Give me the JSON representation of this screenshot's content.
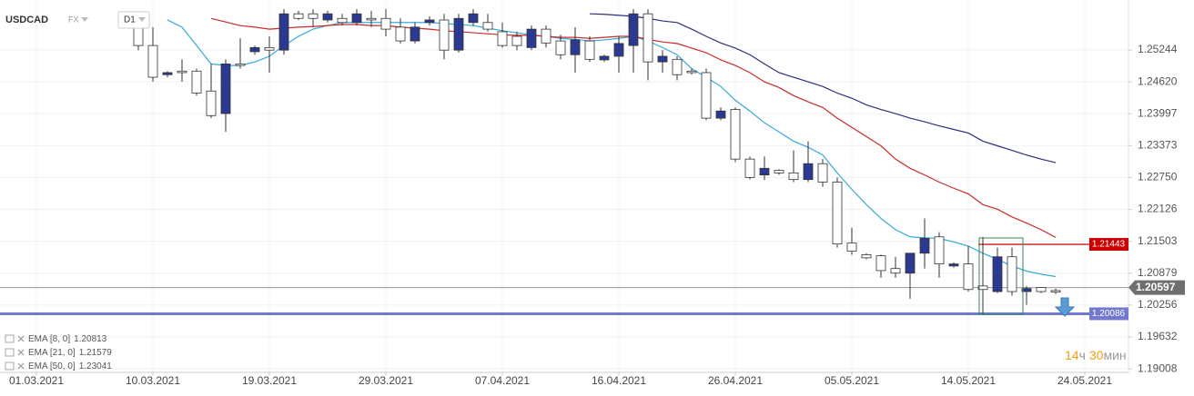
{
  "chart_data": {
    "type": "candlestick",
    "symbol": "USDCAD",
    "market": "FX",
    "timeframe": "D1",
    "categories": [
      "01.03.2021",
      null,
      null,
      null,
      null,
      null,
      null,
      null,
      "10.03.2021",
      null,
      null,
      null,
      null,
      null,
      null,
      null,
      "19.03.2021",
      null,
      null,
      null,
      null,
      null,
      null,
      null,
      "29.03.2021",
      null,
      null,
      null,
      null,
      null,
      null,
      null,
      "07.04.2021",
      null,
      null,
      null,
      null,
      null,
      null,
      null,
      "16.04.2021",
      null,
      null,
      null,
      null,
      null,
      null,
      null,
      "26.04.2021",
      null,
      null,
      null,
      null,
      null,
      null,
      null,
      "05.05.2021",
      null,
      null,
      null,
      null,
      null,
      null,
      null,
      "14.05.2021",
      null,
      null,
      null,
      null,
      null,
      null,
      null,
      "24.05.2021"
    ],
    "ohlc": {
      "open": [
        null,
        null,
        null,
        null,
        null,
        null,
        null,
        1.2569,
        1.2533,
        1.2476,
        1.2483,
        1.2483,
        1.2444,
        1.24,
        1.2497,
        1.2521,
        1.2529,
        1.2524,
        1.2595,
        1.2595,
        1.2583,
        1.2586,
        1.2578,
        1.2586,
        1.2586,
        1.2569,
        1.2542,
        1.2578,
        1.2583,
        1.2524,
        1.2578,
        1.2578,
        1.256,
        1.2551,
        1.2529,
        1.2565,
        1.2542,
        1.2515,
        1.2542,
        1.2505,
        1.2512,
        1.2533,
        1.2595,
        1.2501,
        1.2506,
        1.2483,
        1.248,
        1.2391,
        1.2408,
        1.2311,
        1.228,
        1.2289,
        1.2284,
        1.2271,
        1.2302,
        1.2266,
        1.2147,
        1.2124,
        1.2122,
        1.2097,
        1.2088,
        1.2127,
        1.2159,
        1.2102,
        1.2106,
        1.2063,
        1.2052,
        1.212,
        1.2052,
        1.206,
        1.2054,
        null,
        null
      ],
      "high": [
        null,
        null,
        null,
        null,
        null,
        null,
        null,
        1.2595,
        1.2569,
        1.2483,
        1.2506,
        1.2488,
        1.2497,
        1.2506,
        1.2547,
        1.2533,
        1.2551,
        1.2604,
        1.2601,
        1.2604,
        1.2601,
        1.2595,
        1.2604,
        1.2601,
        1.2604,
        1.2586,
        1.2578,
        1.259,
        1.2595,
        1.2595,
        1.2604,
        1.2595,
        1.2578,
        1.256,
        1.2572,
        1.2572,
        1.2554,
        1.2569,
        1.2551,
        1.2515,
        1.2551,
        1.2604,
        1.2604,
        1.2524,
        1.2512,
        1.2488,
        1.2488,
        1.2412,
        1.2412,
        1.2316,
        1.2316,
        1.2291,
        1.2328,
        1.2346,
        1.2311,
        1.2275,
        1.2177,
        1.2127,
        1.2124,
        1.212,
        1.2127,
        1.2195,
        1.2168,
        1.2109,
        1.2141,
        1.2159,
        1.2138,
        1.2138,
        1.2063,
        1.2061,
        1.2058,
        null,
        null
      ],
      "low": [
        null,
        null,
        null,
        null,
        null,
        null,
        null,
        1.2524,
        1.2462,
        1.2471,
        1.2462,
        1.2435,
        1.2391,
        1.2364,
        1.2488,
        1.2515,
        1.248,
        1.2515,
        1.2583,
        1.2569,
        1.2578,
        1.2572,
        1.2572,
        1.2569,
        1.2551,
        1.2537,
        1.2537,
        1.2572,
        1.2506,
        1.2519,
        1.2572,
        1.256,
        1.2529,
        1.2524,
        1.2524,
        1.2529,
        1.2506,
        1.248,
        1.2501,
        1.2501,
        1.248,
        1.248,
        1.2465,
        1.248,
        1.2465,
        1.2476,
        1.2387,
        1.2387,
        1.2305,
        1.2271,
        1.227,
        1.228,
        1.2266,
        1.2266,
        1.2257,
        1.2138,
        1.2124,
        1.2115,
        1.2079,
        1.2079,
        1.2038,
        1.2097,
        1.2079,
        1.2099,
        1.2052,
        1.2008,
        1.2049,
        1.2044,
        1.2026,
        1.2049,
        1.2047,
        null,
        null
      ],
      "close": [
        null,
        null,
        null,
        null,
        null,
        null,
        null,
        1.2533,
        1.2471,
        1.248,
        1.248,
        1.244,
        1.2396,
        1.2497,
        1.2494,
        1.2529,
        1.2524,
        1.2595,
        1.2586,
        1.2586,
        1.2595,
        1.2578,
        1.2595,
        1.2583,
        1.2565,
        1.2542,
        1.2569,
        1.2583,
        1.2524,
        1.2586,
        1.2595,
        1.2565,
        1.2533,
        1.2533,
        1.2565,
        1.2538,
        1.2515,
        1.2544,
        1.2506,
        1.2512,
        1.2537,
        1.2595,
        1.2501,
        1.2512,
        1.2476,
        1.248,
        1.2391,
        1.2405,
        1.2311,
        1.2275,
        1.2293,
        1.2284,
        1.2271,
        1.2302,
        1.2266,
        1.2145,
        1.2131,
        1.2118,
        1.2093,
        1.2088,
        1.2127,
        1.2156,
        1.2106,
        1.2106,
        1.2056,
        1.2056,
        1.212,
        1.2052,
        1.2058,
        1.2052,
        1.2051,
        null,
        null
      ]
    },
    "up_color": "#2b3990",
    "down_color": "#ffffff",
    "series": [
      {
        "name": "EMA [8, 0]",
        "color": "#35a9dc",
        "values": [
          null,
          null,
          null,
          null,
          null,
          null,
          null,
          null,
          null,
          1.2583,
          1.2569,
          1.2533,
          1.2497,
          1.2494,
          1.2494,
          1.2501,
          1.2512,
          1.2533,
          1.2551,
          1.2565,
          1.2572,
          1.2578,
          1.2578,
          1.2578,
          1.2578,
          1.2578,
          1.2578,
          1.2578,
          1.2576,
          1.2574,
          1.2572,
          1.2567,
          1.2562,
          1.2558,
          1.2554,
          1.2551,
          1.2547,
          1.2545,
          1.2542,
          1.2544,
          1.2547,
          1.2551,
          1.2542,
          1.2529,
          1.2515,
          1.2488,
          1.2471,
          1.2453,
          1.2426,
          1.2405,
          1.2382,
          1.2364,
          1.2346,
          1.2334,
          1.2319,
          1.2284,
          1.2252,
          1.2222,
          1.2195,
          1.2173,
          1.2159,
          1.2157,
          1.2156,
          1.2149,
          1.2141,
          1.2127,
          1.2115,
          1.2102,
          1.2092,
          1.2086,
          1.20813,
          null,
          null
        ]
      },
      {
        "name": "EMA [21, 0]",
        "color": "#cc2a2a",
        "values": [
          null,
          null,
          null,
          null,
          null,
          null,
          null,
          null,
          null,
          null,
          null,
          null,
          1.2586,
          1.2579,
          1.2572,
          1.2569,
          1.2565,
          1.2567,
          1.2569,
          1.257,
          1.2572,
          1.2574,
          1.2574,
          1.2572,
          1.2572,
          1.2569,
          1.2567,
          1.2565,
          1.2562,
          1.256,
          1.2558,
          1.2556,
          1.2554,
          1.2553,
          1.2553,
          1.2551,
          1.2549,
          1.2549,
          1.2547,
          1.2549,
          1.2551,
          1.2551,
          1.2545,
          1.254,
          1.2537,
          1.2528,
          1.2519,
          1.2505,
          1.2494,
          1.248,
          1.2462,
          1.2451,
          1.2435,
          1.2423,
          1.2412,
          1.2391,
          1.2373,
          1.2355,
          1.2337,
          1.2311,
          1.2293,
          1.228,
          1.2266,
          1.2254,
          1.2243,
          1.2222,
          1.2213,
          1.2198,
          1.2186,
          1.2173,
          1.21579,
          null,
          null
        ]
      },
      {
        "name": "EMA [50, 0]",
        "color": "#2d2f7e",
        "values": [
          null,
          null,
          null,
          null,
          null,
          null,
          null,
          null,
          null,
          null,
          null,
          null,
          null,
          null,
          null,
          null,
          null,
          null,
          null,
          null,
          null,
          null,
          null,
          null,
          null,
          null,
          null,
          null,
          null,
          null,
          null,
          null,
          null,
          null,
          null,
          null,
          null,
          null,
          1.2595,
          1.2594,
          1.2592,
          1.259,
          1.2586,
          1.2581,
          1.2578,
          1.2565,
          1.2551,
          1.2538,
          1.2528,
          1.2515,
          1.2497,
          1.248,
          1.2471,
          1.2462,
          1.2453,
          1.244,
          1.243,
          1.2417,
          1.2408,
          1.24,
          1.2391,
          1.2384,
          1.2376,
          1.2369,
          1.2362,
          1.2346,
          1.2337,
          1.2328,
          1.2319,
          1.2311,
          1.23041,
          null,
          null
        ]
      }
    ],
    "levels": [
      {
        "value": 1.21443,
        "color": "#cc0000"
      },
      {
        "value": 1.20086,
        "color": "#7279cf"
      }
    ],
    "current_price": 1.20597,
    "ylim": [
      1.1894,
      1.2622
    ],
    "yticks": [
      1.25244,
      {
        "value": 1.2462,
        "label": "1.24620"
      },
      1.23997,
      1.23373,
      {
        "value": 1.2275,
        "label": "1.22750"
      },
      1.22126,
      1.21503,
      1.20879,
      1.20256,
      1.19632,
      1.19008
    ],
    "grid": true,
    "countdown": {
      "hours": 14,
      "hours_unit": "ч",
      "minutes": 30,
      "minutes_unit": "мин"
    }
  }
}
